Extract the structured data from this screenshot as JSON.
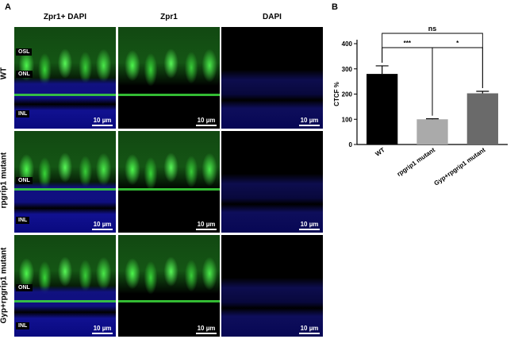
{
  "figure": {
    "panel_a_letter": "A",
    "panel_b_letter": "B",
    "columns": [
      "Zpr1+ DAPI",
      "Zpr1",
      "DAPI"
    ],
    "rows": [
      {
        "label": "WT",
        "layer_labels": [
          "OSL",
          "ONL",
          "INL"
        ]
      },
      {
        "label": "rpgrip1 mutant",
        "layer_labels": [
          "ONL",
          "INL"
        ]
      },
      {
        "label": "Gyp+rpgrip1 mutant",
        "layer_labels": [
          "ONL",
          "INL"
        ]
      }
    ],
    "scale_bar_text": "10 µm"
  },
  "colors": {
    "green_channel": "#3ee63e",
    "blue_channel": "#1a1aa8",
    "bar_wt": "#000000",
    "bar_mut": "#aaaaaa",
    "bar_rescue": "#6a6a6a"
  },
  "chart_data": {
    "type": "bar",
    "ylabel": "CTCF %",
    "ylim": [
      0,
      400
    ],
    "yticks": [
      0,
      100,
      200,
      300,
      400
    ],
    "categories": [
      "WT",
      "rpgrip1 mutant",
      "Gyp+rpgrip1 mutant"
    ],
    "values": [
      280,
      100,
      203
    ],
    "errors": [
      32,
      2,
      8
    ],
    "bar_colors": [
      "#000000",
      "#aaaaaa",
      "#6a6a6a"
    ],
    "significance": [
      {
        "from": 0,
        "to": 2,
        "label": "ns"
      },
      {
        "from": 0,
        "to": 1,
        "label": "***"
      },
      {
        "from": 1,
        "to": 2,
        "label": "*"
      }
    ]
  }
}
